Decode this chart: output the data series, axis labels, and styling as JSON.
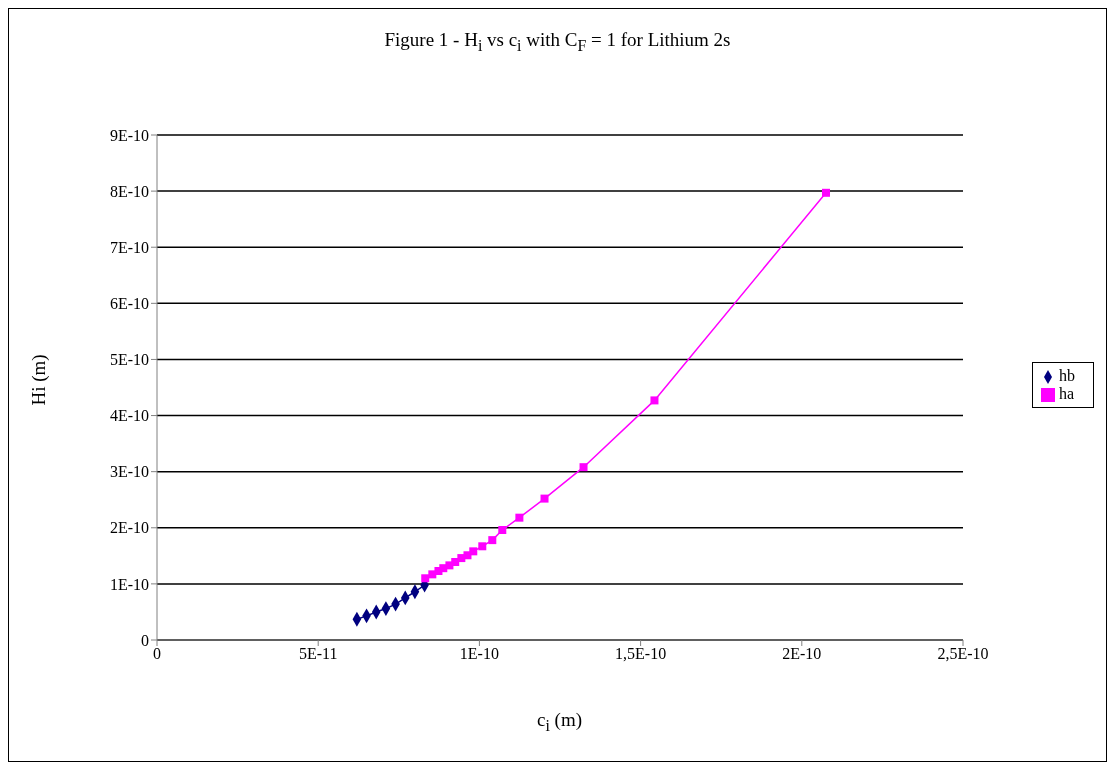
{
  "chart_data": {
    "type": "line",
    "title": "Figure 1 - H$_{i}$ vs c$_{i}$ with C$_{F}$ = 1 for Lithium 2s",
    "xlabel": "c$_{i}$ (m)",
    "ylabel": "Hi (m)",
    "xlim": [
      0,
      2.5e-10
    ],
    "xticks": [
      0,
      {
        "value": 5e-11,
        "label": "5E-11"
      },
      {
        "value": 1e-10,
        "label": "1E-10"
      },
      {
        "value": 1.5e-10,
        "label": "1,5E-10"
      },
      {
        "value": 2e-10,
        "label": "2E-10"
      },
      {
        "value": 2.5e-10,
        "label": "2,5E-10"
      }
    ],
    "ylim": [
      0,
      9e-10
    ],
    "yticks": [
      0,
      {
        "value": 1e-10,
        "label": "1E-10"
      },
      {
        "value": 2e-10,
        "label": "2E-10"
      },
      {
        "value": 3e-10,
        "label": "3E-10"
      },
      {
        "value": 4e-10,
        "label": "4E-10"
      },
      {
        "value": 5e-10,
        "label": "5E-10"
      },
      {
        "value": 6e-10,
        "label": "6E-10"
      },
      {
        "value": 7e-10,
        "label": "7E-10"
      },
      {
        "value": 8e-10,
        "label": "8E-10"
      },
      {
        "value": 9e-10,
        "label": "9E-10"
      }
    ],
    "grid": "y",
    "legend": "right",
    "series": [
      {
        "name": "hb",
        "color": "#000080",
        "marker": "diamond",
        "x": [
          6.2e-11,
          6.5e-11,
          6.8e-11,
          7.1e-11,
          7.4e-11,
          7.7e-11,
          8e-11,
          8.3e-11
        ],
        "values": [
          3.7e-11,
          4.3e-11,
          5e-11,
          5.6e-11,
          6.4e-11,
          7.5e-11,
          8.6e-11,
          9.8e-11
        ]
      },
      {
        "name": "ha",
        "color": "#ff00ff",
        "marker": "square",
        "x": [
          8.32e-11,
          8.54e-11,
          8.73e-11,
          8.88e-11,
          9.07e-11,
          9.25e-11,
          9.44e-11,
          9.63e-11,
          9.81e-11,
          1.009e-10,
          1.04e-10,
          1.071e-10,
          1.124e-10,
          1.202e-10,
          1.323e-10,
          1.543e-10,
          2.075e-10
        ],
        "values": [
          1.1e-10,
          1.17e-10,
          1.23e-10,
          1.28e-10,
          1.33e-10,
          1.39e-10,
          1.46e-10,
          1.51e-10,
          1.58e-10,
          1.67e-10,
          1.78e-10,
          1.96e-10,
          2.18e-10,
          2.52e-10,
          3.08e-10,
          4.27e-10,
          7.97e-10
        ]
      }
    ]
  }
}
